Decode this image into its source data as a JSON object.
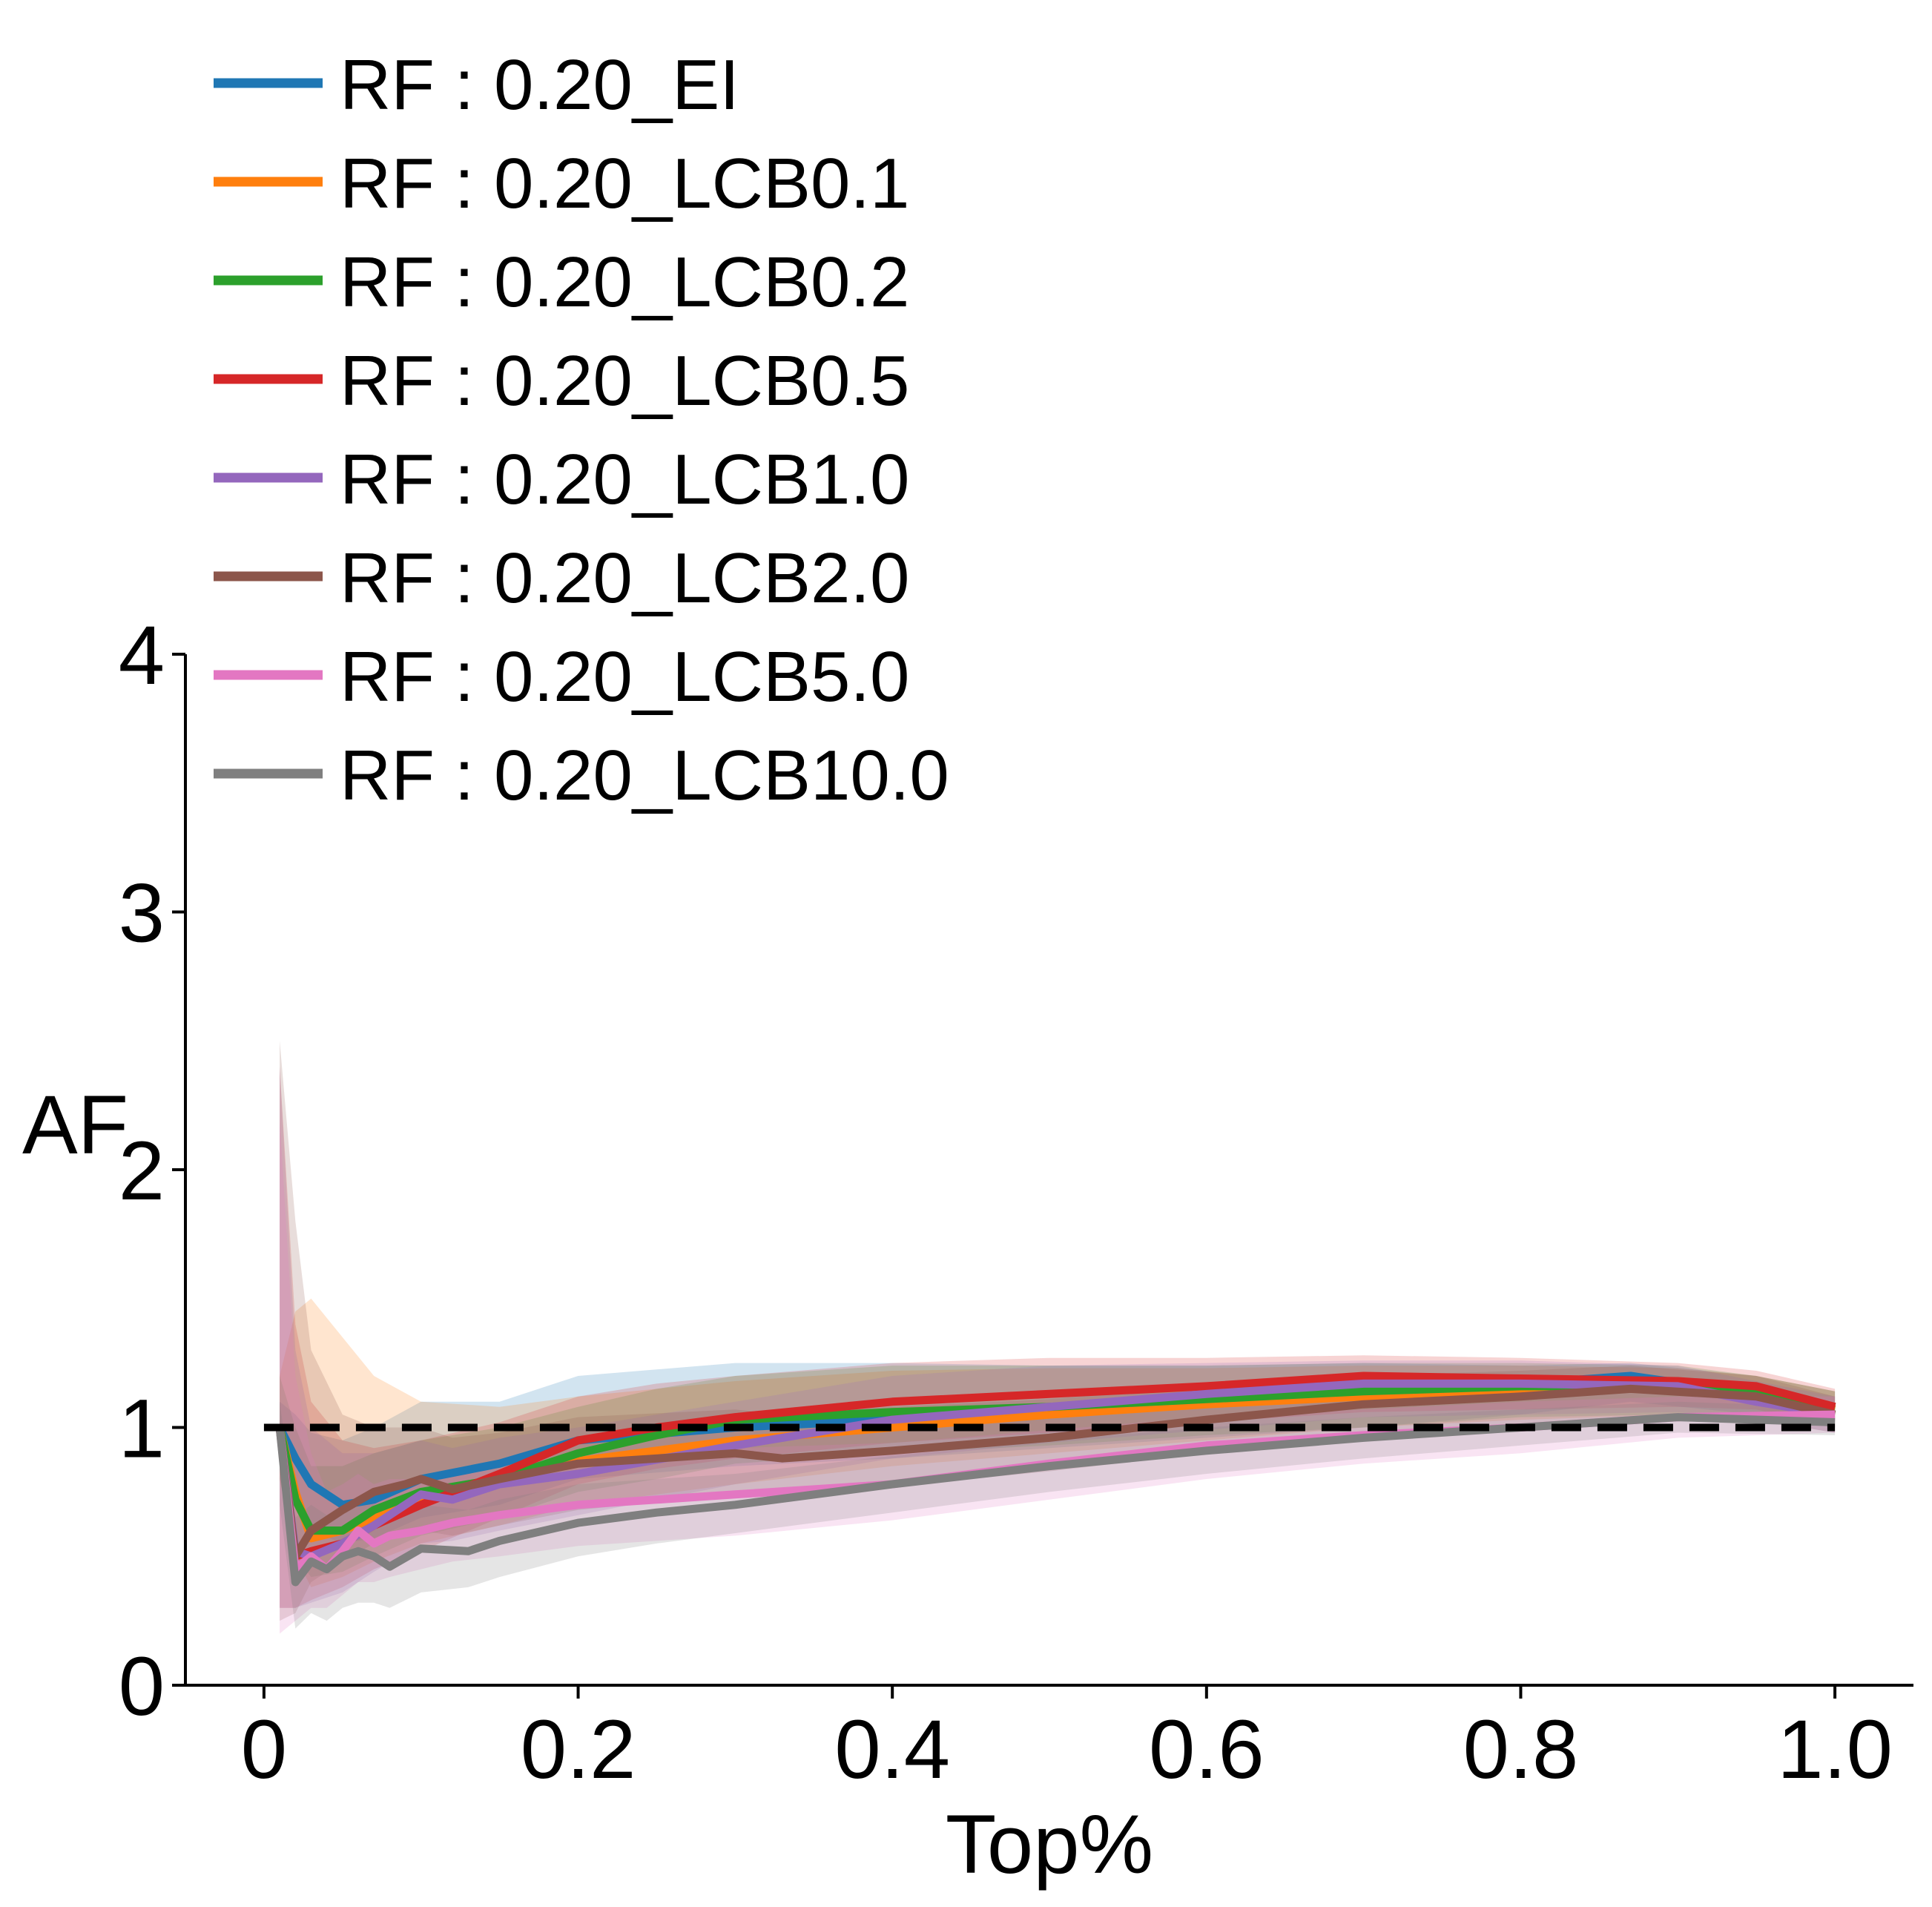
{
  "chart_data": {
    "type": "line",
    "xlabel": "Top%",
    "ylabel": "AF",
    "xlim": [
      -0.05,
      1.05
    ],
    "ylim": [
      0,
      4
    ],
    "xticks": [
      0,
      0.2,
      0.4,
      0.6,
      0.8,
      1.0
    ],
    "xtick_labels": [
      "0",
      "0.2",
      "0.4",
      "0.6",
      "0.8",
      "1.0"
    ],
    "yticks": [
      0,
      1,
      2,
      3,
      4
    ],
    "ytick_labels": [
      "0",
      "1",
      "2",
      "3",
      "4"
    ],
    "grid": false,
    "legend_position": "top-left",
    "reference_line": {
      "y": 1,
      "x_range": [
        0,
        1
      ],
      "style": "dashed",
      "color": "#000000"
    },
    "series": [
      {
        "name": "RF : 0.20_EI",
        "color": "#1f77b4",
        "x": [
          0.01,
          0.02,
          0.03,
          0.05,
          0.07,
          0.1,
          0.15,
          0.2,
          0.3,
          0.4,
          0.5,
          0.6,
          0.7,
          0.8,
          0.87,
          0.95,
          1.0
        ],
        "y": [
          1.0,
          0.88,
          0.78,
          0.7,
          0.72,
          0.8,
          0.86,
          0.95,
          1.0,
          1.03,
          1.06,
          1.1,
          1.14,
          1.17,
          1.2,
          1.13,
          1.07
        ],
        "lower": [
          0.9,
          0.7,
          0.6,
          0.55,
          0.57,
          0.65,
          0.7,
          0.8,
          0.85,
          0.88,
          0.92,
          0.96,
          1.0,
          1.05,
          1.1,
          1.05,
          1.0
        ],
        "upper": [
          1.1,
          1.05,
          0.98,
          0.95,
          1.0,
          1.1,
          1.1,
          1.2,
          1.25,
          1.25,
          1.24,
          1.24,
          1.25,
          1.24,
          1.25,
          1.2,
          1.14
        ]
      },
      {
        "name": "RF : 0.20_LCB0.1",
        "color": "#ff7f0e",
        "x": [
          0.01,
          0.02,
          0.03,
          0.05,
          0.07,
          0.1,
          0.15,
          0.2,
          0.3,
          0.4,
          0.5,
          0.6,
          0.7,
          0.8,
          0.9,
          0.95,
          1.0
        ],
        "y": [
          1.0,
          0.75,
          0.57,
          0.6,
          0.65,
          0.72,
          0.8,
          0.87,
          0.95,
          1.0,
          1.05,
          1.09,
          1.12,
          1.15,
          1.15,
          1.13,
          1.07
        ],
        "lower": [
          0.8,
          0.5,
          0.38,
          0.42,
          0.48,
          0.55,
          0.62,
          0.7,
          0.78,
          0.85,
          0.9,
          0.95,
          1.0,
          1.03,
          1.05,
          1.05,
          1.0
        ],
        "upper": [
          1.2,
          1.45,
          1.5,
          1.35,
          1.2,
          1.1,
          1.08,
          1.12,
          1.18,
          1.22,
          1.23,
          1.23,
          1.24,
          1.24,
          1.23,
          1.2,
          1.14
        ]
      },
      {
        "name": "RF : 0.20_LCB0.2",
        "color": "#2ca02c",
        "x": [
          0.01,
          0.02,
          0.03,
          0.05,
          0.07,
          0.1,
          0.15,
          0.2,
          0.25,
          0.3,
          0.4,
          0.5,
          0.6,
          0.7,
          0.8,
          0.9,
          0.95,
          1.0
        ],
        "y": [
          1.0,
          0.72,
          0.6,
          0.6,
          0.68,
          0.75,
          0.8,
          0.9,
          0.97,
          1.03,
          1.06,
          1.08,
          1.11,
          1.14,
          1.16,
          1.16,
          1.13,
          1.08
        ],
        "lower": [
          0.8,
          0.5,
          0.42,
          0.44,
          0.5,
          0.58,
          0.65,
          0.75,
          0.8,
          0.86,
          0.9,
          0.93,
          0.97,
          1.0,
          1.04,
          1.05,
          1.05,
          1.0
        ],
        "upper": [
          1.2,
          1.0,
          0.85,
          0.85,
          0.9,
          0.95,
          1.0,
          1.08,
          1.15,
          1.2,
          1.24,
          1.24,
          1.24,
          1.25,
          1.25,
          1.24,
          1.2,
          1.14
        ]
      },
      {
        "name": "RF : 0.20_LCB0.5",
        "color": "#d62728",
        "x": [
          0.01,
          0.02,
          0.03,
          0.05,
          0.07,
          0.1,
          0.15,
          0.2,
          0.25,
          0.3,
          0.4,
          0.5,
          0.6,
          0.7,
          0.8,
          0.9,
          0.95,
          1.0
        ],
        "y": [
          1.0,
          0.5,
          0.52,
          0.55,
          0.62,
          0.7,
          0.82,
          0.95,
          1.0,
          1.04,
          1.1,
          1.13,
          1.16,
          1.2,
          1.19,
          1.18,
          1.16,
          1.08
        ],
        "lower": [
          0.3,
          0.3,
          0.33,
          0.38,
          0.45,
          0.52,
          0.65,
          0.78,
          0.84,
          0.88,
          0.94,
          0.98,
          1.02,
          1.06,
          1.07,
          1.08,
          1.07,
          1.0
        ],
        "upper": [
          2.4,
          1.4,
          1.1,
          0.95,
          0.92,
          0.95,
          1.02,
          1.12,
          1.17,
          1.2,
          1.25,
          1.27,
          1.27,
          1.28,
          1.27,
          1.25,
          1.22,
          1.15
        ]
      },
      {
        "name": "RF : 0.20_LCB1.0",
        "color": "#9467bd",
        "x": [
          0.01,
          0.02,
          0.03,
          0.05,
          0.07,
          0.1,
          0.12,
          0.15,
          0.2,
          0.3,
          0.4,
          0.5,
          0.6,
          0.7,
          0.8,
          0.9,
          0.95,
          1.0
        ],
        "y": [
          1.0,
          0.52,
          0.5,
          0.55,
          0.62,
          0.74,
          0.72,
          0.78,
          0.82,
          0.93,
          1.03,
          1.08,
          1.13,
          1.17,
          1.17,
          1.16,
          1.1,
          1.05
        ],
        "lower": [
          0.3,
          0.3,
          0.32,
          0.36,
          0.44,
          0.55,
          0.56,
          0.6,
          0.66,
          0.78,
          0.88,
          0.94,
          0.99,
          1.04,
          1.05,
          1.06,
          1.03,
          0.98
        ],
        "upper": [
          2.4,
          1.3,
          1.0,
          0.9,
          0.9,
          0.95,
          0.92,
          0.96,
          1.0,
          1.1,
          1.2,
          1.24,
          1.25,
          1.26,
          1.26,
          1.24,
          1.18,
          1.12
        ]
      },
      {
        "name": "RF : 0.20_LCB2.0",
        "color": "#8c564b",
        "x": [
          0.01,
          0.02,
          0.03,
          0.05,
          0.07,
          0.09,
          0.1,
          0.12,
          0.15,
          0.2,
          0.3,
          0.33,
          0.4,
          0.5,
          0.6,
          0.7,
          0.8,
          0.87,
          0.95,
          1.0
        ],
        "y": [
          1.0,
          0.5,
          0.6,
          0.68,
          0.75,
          0.78,
          0.8,
          0.76,
          0.8,
          0.86,
          0.9,
          0.88,
          0.91,
          0.96,
          1.03,
          1.09,
          1.12,
          1.15,
          1.12,
          1.05
        ],
        "lower": [
          0.25,
          0.28,
          0.4,
          0.48,
          0.55,
          0.58,
          0.6,
          0.58,
          0.62,
          0.68,
          0.74,
          0.74,
          0.77,
          0.83,
          0.9,
          0.96,
          1.0,
          1.04,
          1.03,
          0.98
        ],
        "upper": [
          2.5,
          1.8,
          1.3,
          1.05,
          1.0,
          1.0,
          1.0,
          0.96,
          0.98,
          1.04,
          1.07,
          1.05,
          1.08,
          1.11,
          1.16,
          1.2,
          1.22,
          1.24,
          1.2,
          1.12
        ]
      },
      {
        "name": "RF : 0.20_LCB5.0",
        "color": "#e377c2",
        "x": [
          0.01,
          0.02,
          0.03,
          0.04,
          0.05,
          0.06,
          0.07,
          0.08,
          0.1,
          0.12,
          0.15,
          0.2,
          0.25,
          0.3,
          0.4,
          0.5,
          0.6,
          0.7,
          0.8,
          0.9,
          1.0
        ],
        "y": [
          1.0,
          0.45,
          0.5,
          0.45,
          0.52,
          0.6,
          0.55,
          0.58,
          0.6,
          0.63,
          0.66,
          0.7,
          0.72,
          0.74,
          0.78,
          0.86,
          0.93,
          0.97,
          1.0,
          1.04,
          1.05
        ],
        "lower": [
          0.2,
          0.25,
          0.3,
          0.3,
          0.35,
          0.4,
          0.4,
          0.42,
          0.45,
          0.48,
          0.5,
          0.54,
          0.56,
          0.58,
          0.64,
          0.72,
          0.8,
          0.86,
          0.9,
          0.96,
          0.98
        ],
        "upper": [
          2.2,
          1.2,
          0.9,
          0.75,
          0.78,
          0.82,
          0.78,
          0.8,
          0.8,
          0.82,
          0.85,
          0.88,
          0.9,
          0.92,
          0.94,
          0.99,
          1.04,
          1.07,
          1.1,
          1.12,
          1.12
        ]
      },
      {
        "name": "RF : 0.20_LCB10.0",
        "color": "#7f7f7f",
        "x": [
          0.01,
          0.02,
          0.03,
          0.04,
          0.05,
          0.06,
          0.07,
          0.08,
          0.1,
          0.13,
          0.15,
          0.2,
          0.25,
          0.3,
          0.4,
          0.5,
          0.6,
          0.7,
          0.8,
          0.9,
          1.0
        ],
        "y": [
          1.0,
          0.4,
          0.48,
          0.45,
          0.5,
          0.52,
          0.5,
          0.46,
          0.53,
          0.52,
          0.56,
          0.63,
          0.67,
          0.7,
          0.78,
          0.85,
          0.91,
          0.96,
          1.0,
          1.04,
          1.02
        ],
        "lower": [
          0.7,
          0.22,
          0.28,
          0.25,
          0.3,
          0.32,
          0.32,
          0.3,
          0.36,
          0.38,
          0.42,
          0.5,
          0.55,
          0.59,
          0.67,
          0.75,
          0.82,
          0.88,
          0.93,
          0.98,
          0.97
        ],
        "upper": [
          1.1,
          0.65,
          0.7,
          0.66,
          0.7,
          0.72,
          0.7,
          0.66,
          0.7,
          0.68,
          0.72,
          0.78,
          0.8,
          0.82,
          0.89,
          0.95,
          1.0,
          1.04,
          1.07,
          1.1,
          1.08
        ]
      }
    ]
  }
}
